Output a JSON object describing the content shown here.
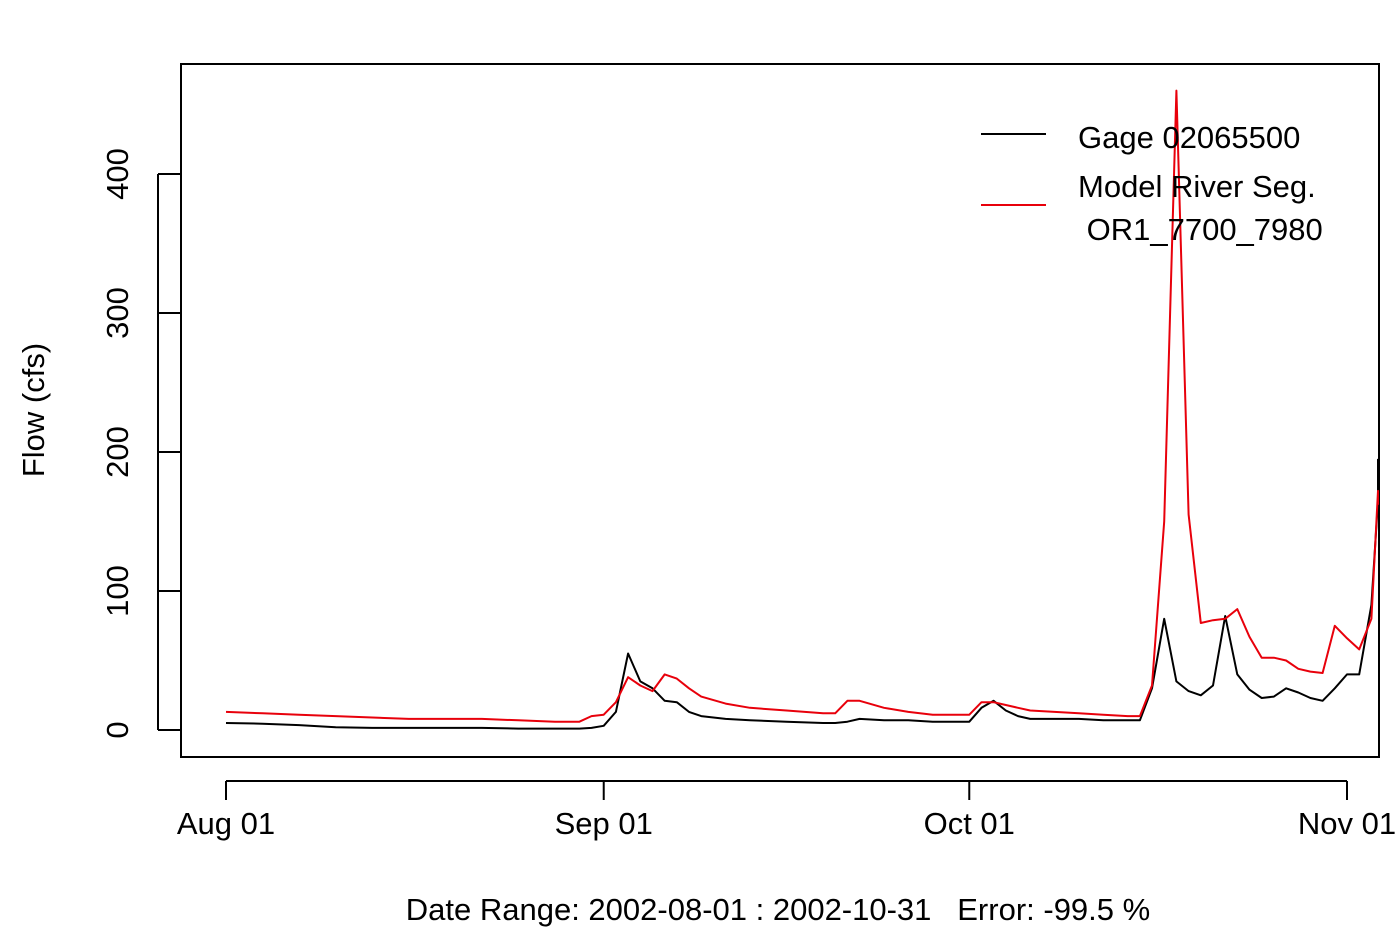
{
  "chart_data": {
    "type": "line",
    "ylabel": "Flow (cfs)",
    "xlabel": "Date Range: 2002-08-01 : 2002-10-31   Error: -99.5 %",
    "xlim": [
      "2002-07-30",
      "2002-11-02"
    ],
    "ylim": [
      -20,
      480
    ],
    "x_ticks": [
      {
        "date": "2002-08-01",
        "label": "Aug 01"
      },
      {
        "date": "2002-09-01",
        "label": "Sep 01"
      },
      {
        "date": "2002-10-01",
        "label": "Oct 01"
      },
      {
        "date": "2002-11-01",
        "label": "Nov 01"
      }
    ],
    "y_ticks": [
      {
        "value": 0,
        "label": "0"
      },
      {
        "value": 100,
        "label": "100"
      },
      {
        "value": 200,
        "label": "200"
      },
      {
        "value": 300,
        "label": "300"
      },
      {
        "value": 400,
        "label": "400"
      }
    ],
    "legend": {
      "placement": "top-right",
      "entries": [
        {
          "label": "Gage 02065500",
          "color": "#000000"
        },
        {
          "label": "Model River Seg.",
          "label_line2": " OR1_7700_7980",
          "color": "#e8000b"
        }
      ]
    },
    "series": [
      {
        "name": "Gage 02065500",
        "color": "#000000",
        "points": [
          [
            "2002-08-01",
            5
          ],
          [
            "2002-08-04",
            4.5
          ],
          [
            "2002-08-07",
            3.5
          ],
          [
            "2002-08-10",
            2
          ],
          [
            "2002-08-13",
            1.5
          ],
          [
            "2002-08-16",
            1.5
          ],
          [
            "2002-08-19",
            1.5
          ],
          [
            "2002-08-22",
            1.5
          ],
          [
            "2002-08-25",
            1
          ],
          [
            "2002-08-28",
            1
          ],
          [
            "2002-08-30",
            1
          ],
          [
            "2002-08-31",
            1.5
          ],
          [
            "2002-09-01",
            3
          ],
          [
            "2002-09-02",
            13
          ],
          [
            "2002-09-03",
            55
          ],
          [
            "2002-09-04",
            35
          ],
          [
            "2002-09-05",
            30
          ],
          [
            "2002-09-06",
            21
          ],
          [
            "2002-09-07",
            20
          ],
          [
            "2002-09-08",
            13
          ],
          [
            "2002-09-09",
            10
          ],
          [
            "2002-09-11",
            8
          ],
          [
            "2002-09-13",
            7
          ],
          [
            "2002-09-16",
            6
          ],
          [
            "2002-09-19",
            5
          ],
          [
            "2002-09-20",
            5
          ],
          [
            "2002-09-21",
            6
          ],
          [
            "2002-09-22",
            8
          ],
          [
            "2002-09-24",
            7
          ],
          [
            "2002-09-26",
            7
          ],
          [
            "2002-09-28",
            6
          ],
          [
            "2002-09-30",
            6
          ],
          [
            "2002-10-01",
            6
          ],
          [
            "2002-10-02",
            16
          ],
          [
            "2002-10-03",
            21
          ],
          [
            "2002-10-04",
            14
          ],
          [
            "2002-10-05",
            10
          ],
          [
            "2002-10-06",
            8
          ],
          [
            "2002-10-08",
            8
          ],
          [
            "2002-10-10",
            8
          ],
          [
            "2002-10-12",
            7
          ],
          [
            "2002-10-14",
            7
          ],
          [
            "2002-10-15",
            7
          ],
          [
            "2002-10-16",
            30
          ],
          [
            "2002-10-17",
            80
          ],
          [
            "2002-10-18",
            35
          ],
          [
            "2002-10-19",
            28
          ],
          [
            "2002-10-20",
            25
          ],
          [
            "2002-10-21",
            32
          ],
          [
            "2002-10-22",
            82
          ],
          [
            "2002-10-23",
            40
          ],
          [
            "2002-10-24",
            29
          ],
          [
            "2002-10-25",
            23
          ],
          [
            "2002-10-26",
            24
          ],
          [
            "2002-10-27",
            30
          ],
          [
            "2002-10-28",
            27
          ],
          [
            "2002-10-29",
            23
          ],
          [
            "2002-10-30",
            21
          ],
          [
            "2002-10-31",
            30
          ],
          [
            "2002-11-01",
            40
          ],
          [
            "2002-11-02",
            40
          ],
          [
            "2002-11-03",
            90
          ],
          [
            "2002-11-04",
            165
          ],
          [
            "2002-11-05",
            195
          ]
        ]
      },
      {
        "name": "Model River Seg.\n OR1_7700_7980",
        "color": "#e8000b",
        "points": [
          [
            "2002-08-01",
            13
          ],
          [
            "2002-08-04",
            12
          ],
          [
            "2002-08-07",
            11
          ],
          [
            "2002-08-10",
            10
          ],
          [
            "2002-08-13",
            9
          ],
          [
            "2002-08-16",
            8
          ],
          [
            "2002-08-19",
            8
          ],
          [
            "2002-08-22",
            8
          ],
          [
            "2002-08-25",
            7
          ],
          [
            "2002-08-28",
            6
          ],
          [
            "2002-08-30",
            6
          ],
          [
            "2002-08-31",
            10
          ],
          [
            "2002-09-01",
            11
          ],
          [
            "2002-09-02",
            20
          ],
          [
            "2002-09-03",
            38
          ],
          [
            "2002-09-04",
            32
          ],
          [
            "2002-09-05",
            28
          ],
          [
            "2002-09-06",
            40
          ],
          [
            "2002-09-07",
            37
          ],
          [
            "2002-09-08",
            30
          ],
          [
            "2002-09-09",
            24
          ],
          [
            "2002-09-11",
            19
          ],
          [
            "2002-09-13",
            16
          ],
          [
            "2002-09-16",
            14
          ],
          [
            "2002-09-19",
            12
          ],
          [
            "2002-09-20",
            12
          ],
          [
            "2002-09-21",
            21
          ],
          [
            "2002-09-22",
            21
          ],
          [
            "2002-09-24",
            16
          ],
          [
            "2002-09-26",
            13
          ],
          [
            "2002-09-28",
            11
          ],
          [
            "2002-09-30",
            11
          ],
          [
            "2002-10-01",
            11
          ],
          [
            "2002-10-02",
            20
          ],
          [
            "2002-10-03",
            20
          ],
          [
            "2002-10-04",
            18
          ],
          [
            "2002-10-05",
            16
          ],
          [
            "2002-10-06",
            14
          ],
          [
            "2002-10-08",
            13
          ],
          [
            "2002-10-10",
            12
          ],
          [
            "2002-10-12",
            11
          ],
          [
            "2002-10-14",
            10
          ],
          [
            "2002-10-15",
            10
          ],
          [
            "2002-10-16",
            32
          ],
          [
            "2002-10-17",
            150
          ],
          [
            "2002-10-18",
            460
          ],
          [
            "2002-10-19",
            155
          ],
          [
            "2002-10-20",
            77
          ],
          [
            "2002-10-21",
            79
          ],
          [
            "2002-10-22",
            80
          ],
          [
            "2002-10-23",
            87
          ],
          [
            "2002-10-24",
            67
          ],
          [
            "2002-10-25",
            52
          ],
          [
            "2002-10-26",
            52
          ],
          [
            "2002-10-27",
            50
          ],
          [
            "2002-10-28",
            44
          ],
          [
            "2002-10-29",
            42
          ],
          [
            "2002-10-30",
            41
          ],
          [
            "2002-10-31",
            75
          ],
          [
            "2002-11-01",
            66
          ],
          [
            "2002-11-02",
            58
          ],
          [
            "2002-11-03",
            80
          ],
          [
            "2002-11-04",
            172
          ],
          [
            "2002-11-05",
            162
          ]
        ]
      }
    ]
  }
}
